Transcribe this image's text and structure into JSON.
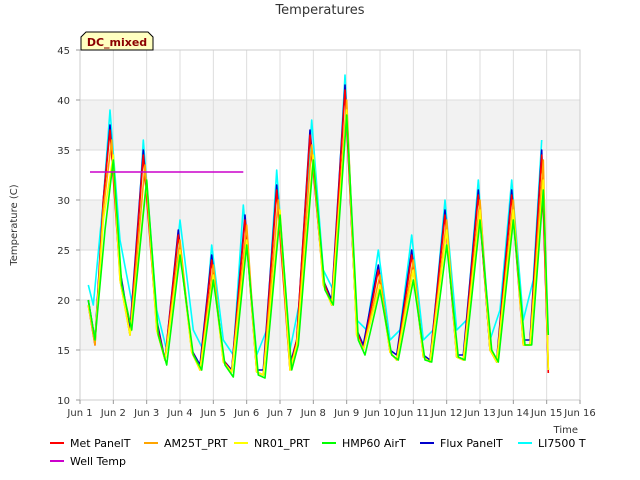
{
  "chart_data": {
    "type": "line",
    "title": "Temperatures",
    "xlabel": "Time",
    "ylabel": "Temperature (C)",
    "badge": "DC_mixed",
    "xlim": [
      1,
      16
    ],
    "ylim": [
      10,
      45
    ],
    "yticks": [
      10,
      15,
      20,
      25,
      30,
      35,
      40,
      45
    ],
    "xticks": [
      {
        "v": 1,
        "label": "Jun 1"
      },
      {
        "v": 2,
        "label": "Jun 2"
      },
      {
        "v": 3,
        "label": "Jun 3"
      },
      {
        "v": 4,
        "label": "Jun 4"
      },
      {
        "v": 5,
        "label": "Jun 5"
      },
      {
        "v": 6,
        "label": "Jun 6"
      },
      {
        "v": 7,
        "label": "Jun 7"
      },
      {
        "v": 8,
        "label": "Jun 8"
      },
      {
        "v": 9,
        "label": "Jun 9"
      },
      {
        "v": 10,
        "label": "Jun 10"
      },
      {
        "v": 11,
        "label": "Jun 11"
      },
      {
        "v": 12,
        "label": "Jun 12"
      },
      {
        "v": 13,
        "label": "Jun 13"
      },
      {
        "v": 14,
        "label": "Jun 14"
      },
      {
        "v": 15,
        "label": "Jun 15"
      },
      {
        "v": 16,
        "label": "Jun 16"
      }
    ],
    "bands": [
      [
        15,
        20
      ],
      [
        25,
        30
      ],
      [
        35,
        40
      ]
    ],
    "grid": true,
    "legend_position": "bottom",
    "series": [
      {
        "name": "LI7500 T",
        "color": "#00ffff",
        "x": [
          1.25,
          1.4,
          1.7,
          1.9,
          2.2,
          2.6,
          2.9,
          3.3,
          3.6,
          4.0,
          4.4,
          4.7,
          4.95,
          5.3,
          5.6,
          5.9,
          6.3,
          6.6,
          6.9,
          7.3,
          7.6,
          7.95,
          8.3,
          8.6,
          8.95,
          9.3,
          9.6,
          9.95,
          10.3,
          10.6,
          10.95,
          11.3,
          11.6,
          11.95,
          12.3,
          12.6,
          12.95,
          13.3,
          13.6,
          13.95,
          14.3,
          14.6,
          14.85
        ],
        "y": [
          21.5,
          19.5,
          30,
          39,
          26,
          19,
          36,
          19,
          15,
          28,
          17,
          15,
          25.5,
          16,
          14.5,
          29.5,
          14.5,
          17,
          33,
          15,
          20,
          38,
          23,
          21,
          42.5,
          18,
          17,
          25,
          16,
          17,
          26.5,
          16,
          17,
          30,
          17,
          18,
          32,
          16,
          19,
          32,
          18,
          22,
          36
        ]
      },
      {
        "name": "Flux PanelT",
        "color": "#0000cc",
        "x": [
          1.25,
          1.45,
          1.7,
          1.9,
          2.2,
          2.5,
          2.9,
          3.3,
          3.55,
          3.95,
          4.35,
          4.6,
          4.95,
          5.3,
          5.55,
          5.95,
          6.3,
          6.5,
          6.9,
          7.3,
          7.5,
          7.9,
          8.3,
          8.55,
          8.95,
          9.3,
          9.5,
          9.95,
          10.3,
          10.5,
          10.95,
          11.3,
          11.5,
          11.95,
          12.3,
          12.5,
          12.95,
          13.3,
          13.5,
          13.95,
          14.3,
          14.5,
          14.85,
          15.05
        ],
        "y": [
          20,
          16,
          30,
          37.5,
          23,
          17,
          35,
          18,
          14,
          27,
          15,
          13.5,
          24.5,
          14,
          13,
          28.5,
          13,
          13,
          31.5,
          13.5,
          16,
          37,
          22,
          20,
          41.5,
          17,
          15.5,
          23.5,
          15,
          14.5,
          25,
          14.5,
          14,
          29,
          14.5,
          14.5,
          31,
          15,
          14,
          31,
          16,
          16,
          35,
          13
        ]
      },
      {
        "name": "Met PanelT",
        "color": "#ff0000",
        "x": [
          1.25,
          1.45,
          1.7,
          1.9,
          2.2,
          2.5,
          2.9,
          3.3,
          3.55,
          3.95,
          4.35,
          4.6,
          4.95,
          5.3,
          5.55,
          5.95,
          6.3,
          6.5,
          6.9,
          7.3,
          7.5,
          7.9,
          8.3,
          8.55,
          8.95,
          9.3,
          9.5,
          9.95,
          10.3,
          10.5,
          10.95,
          11.3,
          11.5,
          11.95,
          12.3,
          12.5,
          12.95,
          13.3,
          13.5,
          13.95,
          14.3,
          14.5,
          14.85,
          15.05
        ],
        "y": [
          19.5,
          15.5,
          30,
          37,
          22.5,
          16.5,
          34.5,
          17.5,
          14,
          26.5,
          15,
          13,
          24,
          14,
          12.8,
          28,
          12.8,
          12.5,
          31,
          13,
          16,
          36.5,
          22,
          19.5,
          41,
          17,
          15,
          23,
          14.8,
          14,
          24.5,
          14.3,
          13.8,
          28.5,
          14.3,
          14,
          30.5,
          15,
          13.8,
          30.5,
          15.5,
          15.5,
          34.5,
          12.7
        ]
      },
      {
        "name": "AM25T_PRT",
        "color": "#ffa500",
        "x": [
          1.25,
          1.45,
          1.7,
          1.95,
          2.2,
          2.5,
          2.95,
          3.3,
          3.55,
          4.0,
          4.35,
          4.6,
          5.0,
          5.3,
          5.55,
          6.0,
          6.3,
          6.5,
          6.95,
          7.3,
          7.5,
          7.95,
          8.3,
          8.55,
          9.0,
          9.3,
          9.5,
          10.0,
          10.3,
          10.5,
          11.0,
          11.3,
          11.5,
          12.0,
          12.3,
          12.5,
          13.0,
          13.3,
          13.5,
          14.0,
          14.3,
          14.5,
          14.9,
          15.05
        ],
        "y": [
          19.5,
          15.5,
          29,
          36,
          22,
          16.5,
          33.5,
          17,
          14,
          26,
          14.8,
          13,
          23.5,
          13.8,
          12.8,
          27.5,
          12.8,
          12.5,
          30,
          13,
          15.5,
          35.5,
          21.5,
          19.5,
          40,
          16.5,
          15,
          22.5,
          14.8,
          14,
          24,
          14.3,
          13.8,
          28,
          14.3,
          14,
          30,
          15,
          13.8,
          30,
          15.5,
          15.5,
          34,
          13
        ]
      },
      {
        "name": "NR01_PRT",
        "color": "#ffff00",
        "x": [
          1.25,
          1.45,
          1.7,
          2.0,
          2.2,
          2.5,
          3.0,
          3.3,
          3.55,
          4.0,
          4.35,
          4.6,
          5.0,
          5.3,
          5.55,
          6.0,
          6.3,
          6.5,
          7.0,
          7.3,
          7.5,
          8.0,
          8.3,
          8.55,
          9.0,
          9.3,
          9.5,
          10.0,
          10.3,
          10.5,
          11.0,
          11.3,
          11.5,
          12.0,
          12.3,
          12.5,
          13.0,
          13.3,
          13.5,
          14.0,
          14.3,
          14.5,
          14.9,
          15.05
        ],
        "y": [
          19.5,
          16,
          28,
          34.5,
          22,
          16.5,
          32,
          17,
          14,
          25,
          14.8,
          13,
          22.5,
          13.8,
          12.8,
          26,
          12.8,
          12.5,
          29,
          13,
          15.5,
          34.5,
          21.5,
          19.5,
          39,
          16.5,
          15,
          21.5,
          14.8,
          14,
          23,
          14.3,
          13.8,
          27,
          14.3,
          14,
          29,
          15,
          13.8,
          29,
          15.5,
          15.5,
          32,
          13
        ]
      },
      {
        "name": "HMP60 AirT",
        "color": "#00ff00",
        "x": [
          1.25,
          1.45,
          1.75,
          2.0,
          2.25,
          2.55,
          3.0,
          3.35,
          3.6,
          4.0,
          4.4,
          4.65,
          5.0,
          5.35,
          5.6,
          6.0,
          6.35,
          6.55,
          7.0,
          7.35,
          7.55,
          8.0,
          8.35,
          8.6,
          9.0,
          9.35,
          9.55,
          10.0,
          10.35,
          10.55,
          11.0,
          11.35,
          11.55,
          12.0,
          12.35,
          12.55,
          13.0,
          13.35,
          13.55,
          14.0,
          14.35,
          14.55,
          14.9,
          15.05
        ],
        "y": [
          20,
          16,
          27,
          34,
          21.5,
          17,
          32,
          16.5,
          13.5,
          24.5,
          14.5,
          13,
          22,
          13.5,
          12.3,
          25.5,
          12.5,
          12.2,
          28.5,
          13,
          15.5,
          34,
          21,
          19.5,
          38.5,
          16,
          14.5,
          21,
          14.5,
          14,
          22,
          14,
          13.8,
          25.5,
          14.3,
          14,
          28,
          15,
          13.8,
          28,
          15.5,
          15.5,
          31,
          16.5
        ]
      },
      {
        "name": "Well Temp",
        "color": "#cc00cc",
        "x": [
          1.3,
          5.9
        ],
        "y": [
          32.8,
          32.8
        ]
      }
    ]
  }
}
